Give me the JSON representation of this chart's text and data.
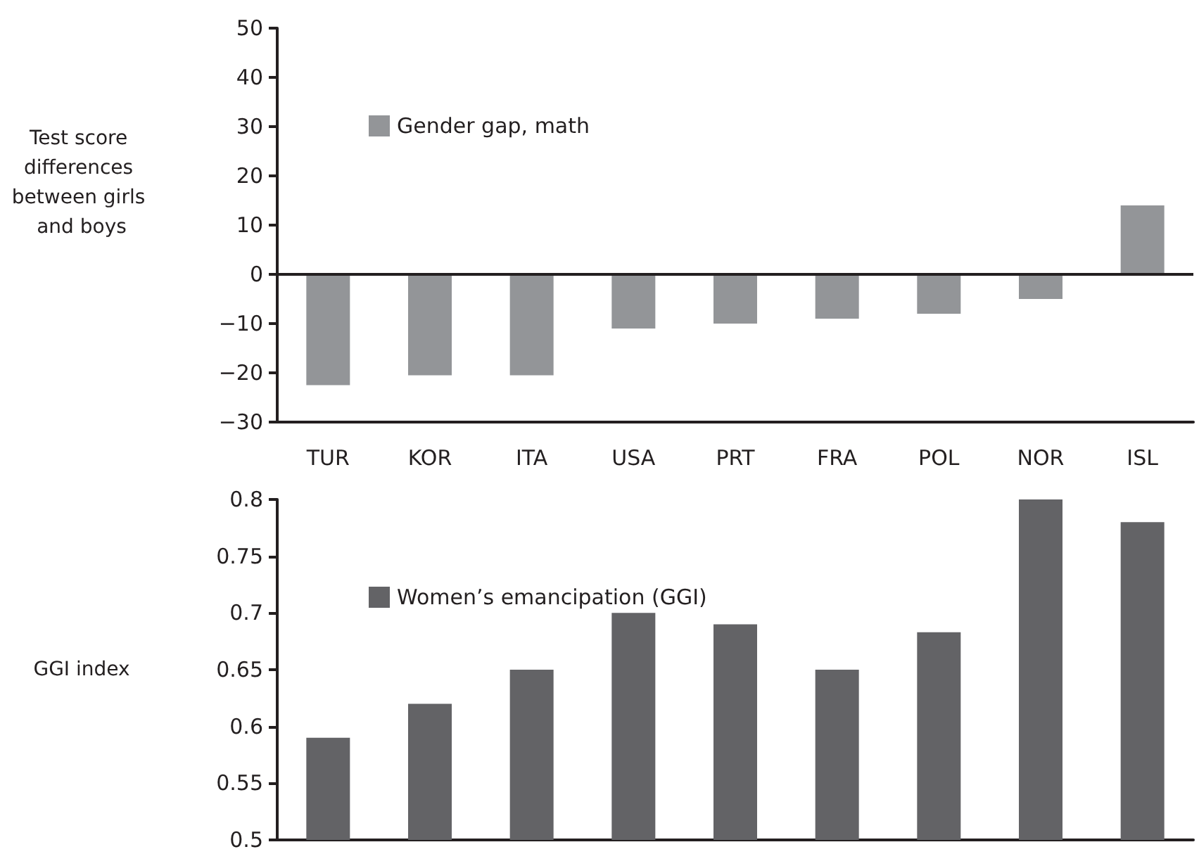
{
  "chart_data": [
    {
      "type": "bar",
      "ylabel": "Test score differences between girls and boys",
      "categories": [
        "TUR",
        "KOR",
        "ITA",
        "USA",
        "PRT",
        "FRA",
        "POL",
        "NOR",
        "ISL"
      ],
      "series": [
        {
          "name": "Gender gap, math",
          "color": "#939598",
          "values": [
            -22.5,
            -20.5,
            -20.5,
            -11,
            -10,
            -9,
            -8,
            -5,
            14
          ]
        }
      ],
      "ylim": [
        -30,
        50
      ],
      "yticks": [
        -30,
        -20,
        -10,
        0,
        10,
        20,
        30,
        40,
        50
      ],
      "grid": false,
      "legend": "top left",
      "ref_lines": [
        {
          "axis": "y",
          "value": 0,
          "color": "#231f20",
          "line_style": "solid"
        }
      ]
    },
    {
      "type": "bar",
      "ylabel": "GGI index",
      "categories": [
        null,
        null,
        null,
        null,
        null,
        null,
        null,
        null,
        null
      ],
      "series": [
        {
          "name": "Women’s emancipation (GGI)",
          "color": "#636366",
          "values": [
            0.59,
            0.62,
            0.65,
            0.7,
            0.69,
            0.65,
            0.683,
            0.8,
            0.78
          ]
        }
      ],
      "ylim": [
        0.5,
        0.8
      ],
      "yticks": [
        0.5,
        0.55,
        0.6,
        0.65,
        0.7,
        0.75,
        0.8
      ],
      "grid": false,
      "legend": "top left",
      "tick_labels": "y"
    }
  ]
}
